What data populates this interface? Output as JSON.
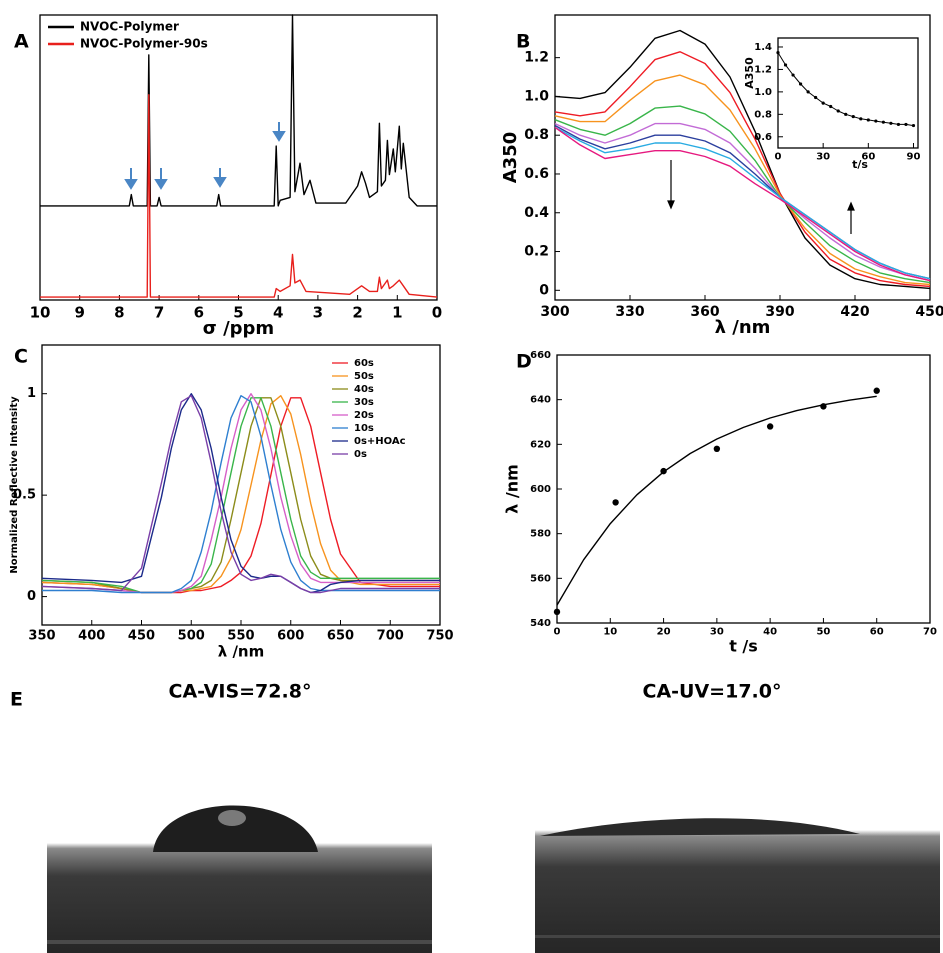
{
  "chart_data": [
    {
      "type": "line",
      "panel_label": "A",
      "xlabel": "σ /ppm",
      "xlim": [
        10,
        0
      ],
      "ylim": [
        0,
        100
      ],
      "xticks": [
        10,
        9,
        8,
        7,
        6,
        5,
        4,
        3,
        2,
        1,
        0
      ],
      "legend": "upper left",
      "series": [
        {
          "name": "NVOC-Polymer",
          "color": "#000000",
          "x": [
            10,
            7.75,
            7.7,
            7.65,
            7.3,
            7.26,
            7.22,
            7.05,
            7.0,
            6.95,
            5.55,
            5.5,
            5.45,
            4.1,
            4.05,
            4.0,
            3.95,
            3.7,
            3.64,
            3.58,
            3.45,
            3.35,
            3.2,
            3.05,
            2.3,
            2.0,
            1.9,
            1.8,
            1.7,
            1.5,
            1.45,
            1.4,
            1.3,
            1.25,
            1.2,
            1.1,
            1.05,
            0.95,
            0.9,
            0.85,
            0.7,
            0.5,
            0
          ],
          "values": [
            33,
            33,
            37,
            33,
            33,
            86,
            33,
            33,
            36,
            33,
            33,
            37,
            33,
            33,
            54,
            33,
            35,
            36,
            100,
            38,
            48,
            37,
            42,
            34,
            34,
            40,
            45,
            41,
            36,
            38,
            62,
            40,
            42,
            56,
            44,
            53,
            45,
            61,
            46,
            55,
            36,
            33,
            33
          ]
        },
        {
          "name": "NVOC-Polymer-90s",
          "color": "#e8201c",
          "x": [
            10,
            7.3,
            7.26,
            7.22,
            4.1,
            4.05,
            3.95,
            3.7,
            3.64,
            3.58,
            3.45,
            3.3,
            2.2,
            1.9,
            1.7,
            1.5,
            1.45,
            1.4,
            1.25,
            1.2,
            1.1,
            0.95,
            0.85,
            0.7,
            0
          ],
          "values": [
            1,
            1,
            72,
            1,
            1,
            4,
            3,
            5,
            16,
            6,
            7,
            3,
            2,
            5,
            3,
            3,
            8,
            4,
            7,
            4,
            5,
            7,
            5,
            2,
            1
          ]
        }
      ]
    },
    {
      "type": "line",
      "panel_label": "B",
      "xlabel": "λ /nm",
      "ylabel": "A350",
      "xlim": [
        300,
        450
      ],
      "ylim": [
        -0.05,
        1.42
      ],
      "xticks": [
        300,
        330,
        360,
        390,
        420,
        450
      ],
      "yticks": [
        0,
        0.2,
        0.4,
        0.6,
        0.8,
        {
          "value": 1,
          "label": "1.0"
        },
        1.2
      ],
      "x": [
        300,
        310,
        320,
        330,
        340,
        350,
        360,
        370,
        380,
        390,
        400,
        410,
        420,
        430,
        440,
        450
      ],
      "series": [
        {
          "color": "#000000",
          "values": [
            1.0,
            0.99,
            1.02,
            1.15,
            1.3,
            1.34,
            1.27,
            1.1,
            0.82,
            0.5,
            0.27,
            0.13,
            0.06,
            0.03,
            0.02,
            0.01
          ]
        },
        {
          "color": "#ee1c25",
          "values": [
            0.92,
            0.9,
            0.92,
            1.05,
            1.19,
            1.23,
            1.17,
            1.02,
            0.78,
            0.5,
            0.3,
            0.16,
            0.09,
            0.05,
            0.03,
            0.02
          ]
        },
        {
          "color": "#f7931e",
          "values": [
            0.9,
            0.87,
            0.87,
            0.98,
            1.08,
            1.11,
            1.06,
            0.93,
            0.73,
            0.49,
            0.32,
            0.19,
            0.11,
            0.07,
            0.04,
            0.03
          ]
        },
        {
          "color": "#39b54a",
          "values": [
            0.88,
            0.83,
            0.8,
            0.86,
            0.94,
            0.95,
            0.91,
            0.82,
            0.67,
            0.48,
            0.35,
            0.23,
            0.15,
            0.09,
            0.06,
            0.04
          ]
        },
        {
          "color": "#c26bd6",
          "values": [
            0.86,
            0.8,
            0.76,
            0.8,
            0.86,
            0.86,
            0.83,
            0.76,
            0.63,
            0.48,
            0.37,
            0.27,
            0.18,
            0.12,
            0.08,
            0.05
          ]
        },
        {
          "color": "#2b3f9e",
          "values": [
            0.85,
            0.78,
            0.73,
            0.76,
            0.8,
            0.8,
            0.77,
            0.71,
            0.6,
            0.48,
            0.39,
            0.3,
            0.21,
            0.14,
            0.09,
            0.06
          ]
        },
        {
          "color": "#29abe2",
          "values": [
            0.84,
            0.77,
            0.71,
            0.73,
            0.76,
            0.76,
            0.73,
            0.68,
            0.58,
            0.48,
            0.39,
            0.3,
            0.21,
            0.14,
            0.09,
            0.06
          ]
        },
        {
          "color": "#e6197f",
          "values": [
            0.84,
            0.75,
            0.68,
            0.7,
            0.72,
            0.72,
            0.69,
            0.64,
            0.55,
            0.47,
            0.38,
            0.29,
            0.2,
            0.13,
            0.08,
            0.05
          ]
        }
      ]
    },
    {
      "type": "line",
      "markers": true,
      "xlabel": "t/s",
      "ylabel": "A350",
      "xlim": [
        0,
        93
      ],
      "ylim": [
        0.5,
        1.48
      ],
      "xticks": [
        0,
        30,
        60,
        90
      ],
      "yticks": [
        0.6,
        0.8,
        {
          "value": 1,
          "label": "1.0"
        },
        1.2,
        1.4
      ],
      "x": [
        0,
        5,
        10,
        15,
        20,
        25,
        30,
        35,
        40,
        45,
        50,
        55,
        60,
        65,
        70,
        75,
        80,
        85,
        90
      ],
      "series": [
        {
          "color": "#000000",
          "values": [
            1.35,
            1.24,
            1.15,
            1.07,
            1.0,
            0.95,
            0.9,
            0.87,
            0.83,
            0.8,
            0.78,
            0.76,
            0.75,
            0.74,
            0.73,
            0.72,
            0.71,
            0.71,
            0.7
          ]
        }
      ]
    },
    {
      "type": "line",
      "panel_label": "C",
      "xlabel": "λ /nm",
      "ylabel": "Normalized Reflective Intensity",
      "xlim": [
        350,
        750
      ],
      "ylim": [
        -0.14,
        1.24
      ],
      "xticks": [
        350,
        400,
        450,
        500,
        550,
        600,
        650,
        700,
        750
      ],
      "yticks": [
        0,
        0.5,
        1
      ],
      "legend": "upper right",
      "x": [
        350,
        400,
        430,
        450,
        470,
        480,
        490,
        500,
        510,
        520,
        530,
        540,
        550,
        560,
        570,
        580,
        590,
        600,
        610,
        620,
        630,
        640,
        650,
        670,
        700,
        750
      ],
      "series": [
        {
          "name": "60s",
          "color": "#ee1c25",
          "values": [
            0.07,
            0.06,
            0.04,
            0.02,
            0.02,
            0.02,
            0.02,
            0.03,
            0.03,
            0.04,
            0.05,
            0.08,
            0.12,
            0.2,
            0.36,
            0.6,
            0.84,
            0.98,
            0.98,
            0.84,
            0.61,
            0.38,
            0.21,
            0.07,
            0.05,
            0.05
          ]
        },
        {
          "name": "50s",
          "color": "#f7931e",
          "values": [
            0.07,
            0.06,
            0.04,
            0.02,
            0.02,
            0.02,
            0.03,
            0.03,
            0.04,
            0.05,
            0.1,
            0.19,
            0.33,
            0.55,
            0.77,
            0.95,
            0.99,
            0.9,
            0.7,
            0.46,
            0.26,
            0.13,
            0.08,
            0.06,
            0.06,
            0.06
          ]
        },
        {
          "name": "40s",
          "color": "#8c8c1a",
          "values": [
            0.08,
            0.07,
            0.04,
            0.02,
            0.02,
            0.02,
            0.03,
            0.04,
            0.05,
            0.08,
            0.17,
            0.38,
            0.61,
            0.84,
            0.98,
            0.98,
            0.84,
            0.61,
            0.38,
            0.2,
            0.11,
            0.09,
            0.08,
            0.08,
            0.08,
            0.08
          ]
        },
        {
          "name": "30s",
          "color": "#39b54a",
          "values": [
            0.08,
            0.07,
            0.05,
            0.02,
            0.02,
            0.02,
            0.03,
            0.04,
            0.07,
            0.16,
            0.38,
            0.61,
            0.84,
            0.98,
            0.98,
            0.84,
            0.61,
            0.38,
            0.2,
            0.12,
            0.09,
            0.09,
            0.09,
            0.09,
            0.09,
            0.09
          ]
        },
        {
          "name": "20s",
          "color": "#d65fc8",
          "values": [
            0.05,
            0.04,
            0.03,
            0.02,
            0.02,
            0.02,
            0.03,
            0.05,
            0.1,
            0.28,
            0.49,
            0.73,
            0.92,
            1,
            0.92,
            0.73,
            0.49,
            0.3,
            0.16,
            0.09,
            0.07,
            0.07,
            0.07,
            0.07,
            0.07,
            0.07
          ]
        },
        {
          "name": "10s",
          "color": "#2e7fd0",
          "values": [
            0.03,
            0.03,
            0.02,
            0.02,
            0.02,
            0.02,
            0.04,
            0.08,
            0.22,
            0.42,
            0.66,
            0.88,
            0.99,
            0.96,
            0.79,
            0.55,
            0.33,
            0.17,
            0.08,
            0.04,
            0.03,
            0.03,
            0.03,
            0.03,
            0.03,
            0.03
          ]
        },
        {
          "name": "0s+HOAc",
          "color": "#1b2a8a",
          "values": [
            0.09,
            0.08,
            0.07,
            0.1,
            0.49,
            0.73,
            0.92,
            1,
            0.92,
            0.73,
            0.49,
            0.28,
            0.15,
            0.1,
            0.09,
            0.1,
            0.1,
            0.07,
            0.04,
            0.02,
            0.03,
            0.06,
            0.07,
            0.08,
            0.08,
            0.08
          ]
        },
        {
          "name": "0s",
          "color": "#7a3fa8",
          "values": [
            0.05,
            0.04,
            0.03,
            0.14,
            0.56,
            0.78,
            0.96,
            0.99,
            0.88,
            0.66,
            0.42,
            0.22,
            0.11,
            0.08,
            0.09,
            0.11,
            0.1,
            0.07,
            0.04,
            0.02,
            0.02,
            0.03,
            0.04,
            0.04,
            0.04,
            0.04
          ]
        }
      ]
    },
    {
      "type": "scatter",
      "panel_label": "D",
      "xlabel": "t /s",
      "ylabel": "λ /nm",
      "xlim": [
        0,
        70
      ],
      "ylim": [
        540,
        660
      ],
      "xticks": [
        0,
        10,
        20,
        30,
        40,
        50,
        60,
        70
      ],
      "yticks": [
        540,
        560,
        580,
        600,
        620,
        640,
        660
      ],
      "series": [
        {
          "color": "#000000",
          "x": [
            0,
            11,
            20,
            30,
            40,
            50,
            60
          ],
          "values": [
            545,
            594,
            608,
            618,
            628,
            637,
            644
          ]
        },
        {
          "color": "#000000",
          "line": true,
          "x": [
            0,
            5,
            10,
            15,
            20,
            25,
            30,
            35,
            40,
            45,
            50,
            55,
            60
          ],
          "values": [
            548,
            568.3,
            584.5,
            597.4,
            607.7,
            615.9,
            622.4,
            627.6,
            631.8,
            635.1,
            637.7,
            639.8,
            641.5
          ]
        }
      ]
    }
  ],
  "photos": {
    "panel_label": "E",
    "items": [
      {
        "label": "CA-VIS=72.8°"
      },
      {
        "label": "CA-UV=17.0°"
      }
    ]
  }
}
